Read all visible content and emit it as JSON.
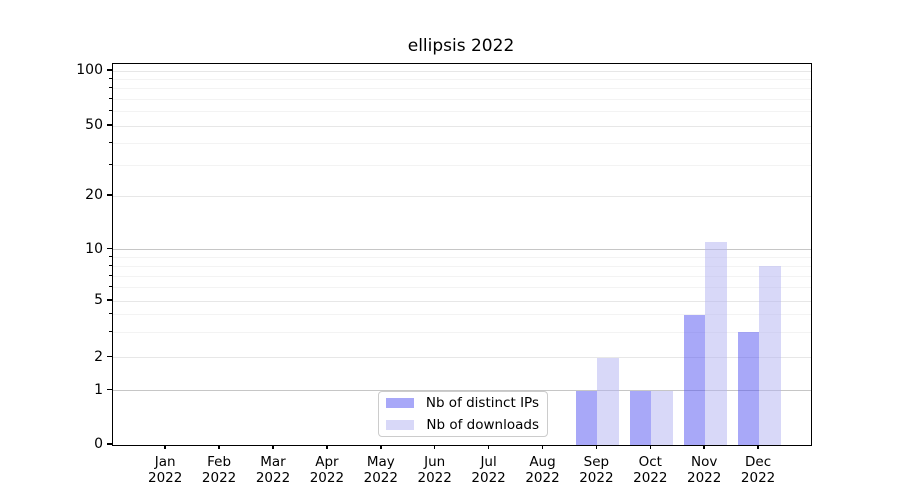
{
  "title": "ellipsis 2022",
  "chart_data": {
    "type": "bar",
    "title": "ellipsis 2022",
    "categories": [
      "Jan 2022",
      "Feb 2022",
      "Mar 2022",
      "Apr 2022",
      "May 2022",
      "Jun 2022",
      "Jul 2022",
      "Aug 2022",
      "Sep 2022",
      "Oct 2022",
      "Nov 2022",
      "Dec 2022"
    ],
    "series": [
      {
        "name": "Nb of distinct IPs",
        "color": "#a8a8f8",
        "values": [
          0,
          0,
          0,
          0,
          0,
          0,
          0,
          0,
          1,
          1,
          4,
          3
        ]
      },
      {
        "name": "Nb of downloads",
        "color": "#d8d8f8",
        "values": [
          0,
          0,
          0,
          0,
          0,
          0,
          0,
          0,
          2,
          1,
          11,
          8
        ]
      }
    ],
    "yscale": "asinh",
    "ylim": [
      0,
      110
    ],
    "yticks": [
      0,
      1,
      2,
      5,
      10,
      20,
      50,
      100
    ],
    "yticks_major_grid": [
      1,
      10
    ],
    "yticks_minor_grid": [
      3,
      4,
      6,
      7,
      8,
      9,
      30,
      40,
      60,
      70,
      80,
      90
    ],
    "grid": "on",
    "legend_position": "lower center"
  }
}
